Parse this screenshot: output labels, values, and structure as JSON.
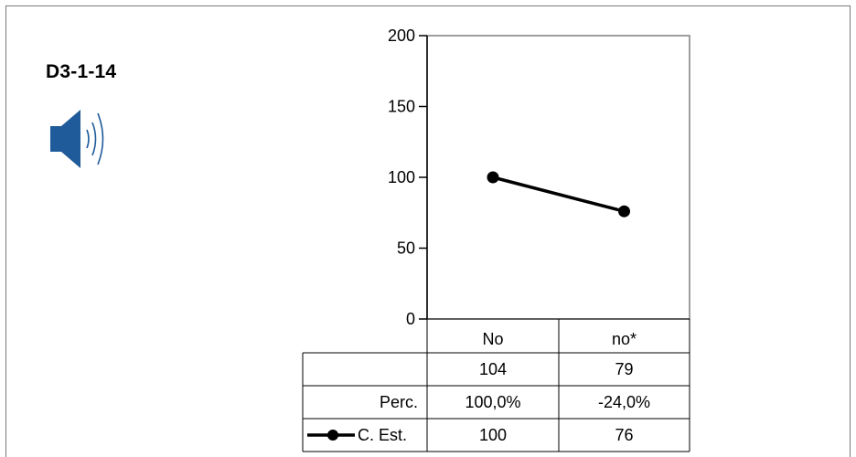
{
  "header": {
    "code": "D3-1-14"
  },
  "icons": {
    "speaker": "speaker-icon"
  },
  "colors": {
    "speaker": "#1f5a9a",
    "line": "#000000",
    "plot_border": "#7f7f7f"
  },
  "chart_data": {
    "type": "line",
    "categories": [
      "No",
      "no*"
    ],
    "y_ticks": [
      "0",
      "50",
      "100",
      "150",
      "200"
    ],
    "ylim": [
      0,
      200
    ],
    "grid": false,
    "legend": "table-row",
    "series": [
      {
        "name": "C. Est.",
        "values": [
          100,
          76
        ],
        "marker": "circle"
      }
    ],
    "table": {
      "rows": [
        {
          "label": "",
          "values": [
            "104",
            "79"
          ]
        },
        {
          "label": "Perc.",
          "values": [
            "100,0%",
            "-24,0%"
          ]
        },
        {
          "label": "C. Est.",
          "values": [
            "100",
            "76"
          ]
        }
      ]
    }
  }
}
